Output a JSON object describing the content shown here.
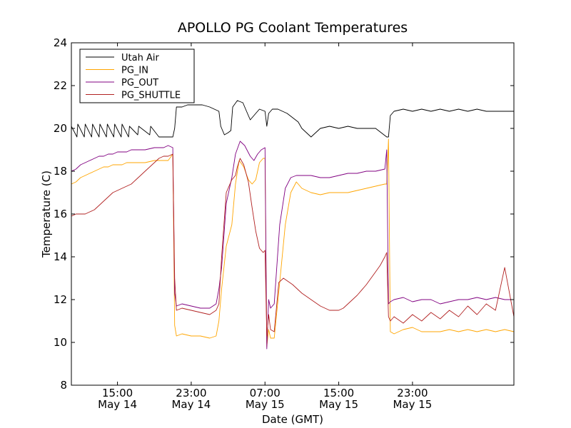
{
  "chart_data": {
    "type": "line",
    "title": "APOLLO PG Coolant Temperatures",
    "xlabel": "Date (GMT)",
    "ylabel": "Temperature (C)",
    "xlim": [
      10,
      58
    ],
    "ylim": [
      8,
      24
    ],
    "yticks": [
      8,
      10,
      12,
      14,
      16,
      18,
      20,
      22,
      24
    ],
    "xticks": [
      {
        "hours": 15,
        "time": "15:00",
        "date": "May 14"
      },
      {
        "hours": 23,
        "time": "23:00",
        "date": "May 14"
      },
      {
        "hours": 31,
        "time": "07:00",
        "date": "May 15"
      },
      {
        "hours": 39,
        "time": "15:00",
        "date": "May 15"
      },
      {
        "hours": 47,
        "time": "23:00",
        "date": "May 15"
      }
    ],
    "x_units": "hours since May 14 00:00 GMT",
    "legend_position": "top-left",
    "series": [
      {
        "name": "Utah Air",
        "color": "#000000",
        "x": [
          10,
          10.6,
          10.7,
          11.4,
          11.5,
          12.2,
          12.3,
          13,
          13.1,
          13.8,
          13.9,
          14.6,
          14.7,
          15.4,
          15.5,
          16.2,
          16.3,
          17.2,
          17.3,
          18.5,
          18.6,
          19.5,
          20.2,
          21.0,
          21.2,
          21.4,
          22.0,
          22.6,
          23.4,
          24.2,
          25.0,
          26.0,
          26.2,
          26.6,
          27.0,
          27.3,
          27.5,
          28.0,
          28.6,
          29.0,
          29.4,
          30.0,
          30.4,
          31.0,
          31.2,
          31.4,
          31.8,
          32.4,
          33.4,
          34.6,
          35.0,
          36.0,
          37.0,
          38.0,
          39.0,
          40.0,
          41.0,
          42.0,
          43.0,
          44.2,
          44.4,
          44.6,
          45.0,
          46.0,
          47.0,
          48.0,
          49.0,
          50.0,
          51.0,
          52.0,
          53.0,
          54.0,
          55.0,
          56.0,
          57.0,
          58.0
        ],
        "y": [
          20.1,
          19.6,
          20.2,
          19.6,
          20.2,
          19.6,
          20.2,
          19.6,
          20.2,
          19.6,
          20.2,
          19.6,
          20.2,
          19.6,
          20.2,
          19.6,
          20.1,
          19.7,
          20.1,
          19.7,
          20.1,
          19.6,
          19.6,
          19.6,
          20.0,
          21.0,
          21.0,
          21.1,
          21.1,
          21.1,
          21.0,
          20.8,
          20.1,
          19.7,
          19.8,
          19.9,
          21.0,
          21.3,
          21.2,
          20.8,
          20.4,
          20.7,
          20.9,
          20.8,
          20.1,
          20.7,
          20.9,
          20.9,
          20.7,
          20.3,
          20.0,
          19.6,
          20.0,
          20.1,
          20.0,
          20.1,
          20.0,
          20.0,
          20.0,
          19.6,
          19.6,
          20.6,
          20.8,
          20.9,
          20.8,
          20.9,
          20.8,
          20.9,
          20.8,
          20.9,
          20.8,
          20.9,
          20.8,
          20.8,
          20.8,
          20.8
        ]
      },
      {
        "name": "PG_IN",
        "color": "#ffa500",
        "x": [
          10,
          10.5,
          11,
          11.5,
          12,
          12.5,
          13,
          13.5,
          14,
          14.5,
          15,
          15.5,
          16,
          16.5,
          17,
          17.5,
          18,
          19,
          20,
          20.5,
          21.0,
          21.2,
          21.4,
          22,
          23,
          24,
          25,
          25.7,
          26,
          26.3,
          26.8,
          27.4,
          27.8,
          28.2,
          28.7,
          29.2,
          29.6,
          30.0,
          30.4,
          30.8,
          31.0,
          31.2,
          31.4,
          31.6,
          32.0,
          32.6,
          33.2,
          33.8,
          34.4,
          35.0,
          36.0,
          37.0,
          38.0,
          39.0,
          40.0,
          41.0,
          42.0,
          43.0,
          44.0,
          44.2,
          44.4,
          44.6,
          45,
          46,
          47,
          48,
          49,
          50,
          51,
          52,
          53,
          54,
          55,
          56,
          57,
          58
        ],
        "y": [
          17.4,
          17.5,
          17.7,
          17.8,
          17.9,
          18.0,
          18.1,
          18.2,
          18.2,
          18.3,
          18.3,
          18.3,
          18.4,
          18.4,
          18.4,
          18.4,
          18.4,
          18.5,
          18.5,
          18.5,
          18.8,
          10.8,
          10.3,
          10.4,
          10.3,
          10.3,
          10.2,
          10.3,
          11.0,
          12.5,
          14.5,
          15.5,
          17.4,
          18.5,
          18.2,
          17.6,
          17.4,
          17.6,
          18.4,
          18.6,
          18.6,
          9.8,
          10.6,
          10.2,
          10.2,
          12.8,
          15.5,
          17.0,
          17.5,
          17.2,
          17.0,
          16.9,
          17.0,
          17.0,
          17.0,
          17.1,
          17.2,
          17.3,
          17.4,
          17.4,
          19.5,
          10.5,
          10.4,
          10.6,
          10.7,
          10.5,
          10.5,
          10.5,
          10.6,
          10.5,
          10.6,
          10.5,
          10.6,
          10.5,
          10.6,
          10.5
        ]
      },
      {
        "name": "PG_OUT",
        "color": "#800080",
        "x": [
          10,
          10.5,
          11,
          11.5,
          12,
          12.5,
          13,
          13.5,
          14,
          14.5,
          15,
          15.5,
          16,
          16.5,
          17,
          17.5,
          18,
          19,
          20,
          20.5,
          21.0,
          21.2,
          21.4,
          22,
          23,
          24,
          25,
          25.7,
          26,
          26.3,
          26.8,
          27.4,
          27.8,
          28.3,
          28.8,
          29.4,
          29.8,
          30.2,
          30.6,
          31.0,
          31.2,
          31.4,
          31.6,
          32.0,
          32.6,
          33.2,
          33.8,
          34.4,
          35.0,
          36.0,
          37.0,
          38.0,
          39.0,
          40.0,
          41.0,
          42.0,
          43.0,
          44.0,
          44.2,
          44.4,
          44.6,
          45,
          46,
          47,
          48,
          49,
          50,
          51,
          52,
          53,
          54,
          55,
          56,
          57,
          58
        ],
        "y": [
          18.0,
          18.1,
          18.3,
          18.4,
          18.5,
          18.6,
          18.7,
          18.7,
          18.8,
          18.8,
          18.9,
          18.9,
          18.9,
          19.0,
          19.0,
          19.0,
          19.0,
          19.1,
          19.1,
          19.2,
          19.1,
          12.3,
          11.7,
          11.8,
          11.7,
          11.6,
          11.6,
          11.8,
          12.5,
          13.5,
          16.5,
          17.7,
          18.8,
          19.4,
          19.2,
          18.7,
          18.5,
          18.8,
          19.0,
          19.1,
          9.7,
          12.0,
          11.6,
          11.8,
          15.5,
          17.2,
          17.7,
          17.8,
          17.8,
          17.8,
          17.7,
          17.7,
          17.8,
          17.9,
          17.9,
          18.0,
          18.0,
          18.1,
          19.0,
          11.8,
          11.9,
          12.0,
          12.1,
          11.9,
          12.0,
          12.0,
          11.8,
          11.9,
          12.0,
          12.0,
          12.1,
          12.0,
          12.1,
          12.0,
          12.0
        ]
      },
      {
        "name": "PG_SHUTTLE",
        "color": "#b22222",
        "x": [
          10,
          10.5,
          11,
          11.5,
          12,
          12.5,
          13,
          13.5,
          14,
          14.5,
          15,
          15.5,
          16,
          16.5,
          17,
          17.5,
          18,
          18.5,
          19,
          19.5,
          20,
          20.5,
          21.0,
          21.2,
          21.4,
          22,
          23,
          24,
          25,
          25.7,
          26,
          26.3,
          26.8,
          27.4,
          27.8,
          28.0,
          28.3,
          28.7,
          29.2,
          29.6,
          30.0,
          30.4,
          30.8,
          31.0,
          31.2,
          31.4,
          31.6,
          32.0,
          32.5,
          33.0,
          34.0,
          35.0,
          36.0,
          37.0,
          38.0,
          39.0,
          39.5,
          40.0,
          41.0,
          42.0,
          43.0,
          43.5,
          44.0,
          44.2,
          44.4,
          44.6,
          45,
          46,
          47,
          48,
          49,
          50,
          51,
          52,
          53,
          54,
          55,
          56,
          57,
          58
        ],
        "y": [
          15.9,
          16.0,
          16.0,
          16.0,
          16.1,
          16.2,
          16.4,
          16.6,
          16.8,
          17.0,
          17.1,
          17.2,
          17.3,
          17.4,
          17.6,
          17.8,
          18.0,
          18.2,
          18.4,
          18.6,
          18.7,
          18.7,
          18.8,
          13.0,
          11.5,
          11.6,
          11.5,
          11.4,
          11.3,
          11.5,
          11.8,
          14.0,
          17.0,
          17.6,
          17.8,
          18.2,
          18.6,
          18.3,
          17.5,
          16.3,
          15.2,
          14.4,
          14.2,
          14.3,
          10.3,
          11.3,
          10.6,
          10.5,
          12.8,
          13.0,
          12.7,
          12.3,
          12.0,
          11.7,
          11.5,
          11.5,
          11.6,
          11.8,
          12.2,
          12.7,
          13.3,
          13.6,
          14.0,
          14.2,
          11.2,
          11.0,
          11.2,
          10.9,
          11.3,
          11.0,
          11.4,
          11.1,
          11.5,
          11.2,
          11.7,
          11.3,
          11.8,
          11.5,
          13.5,
          11.2
        ]
      }
    ]
  }
}
